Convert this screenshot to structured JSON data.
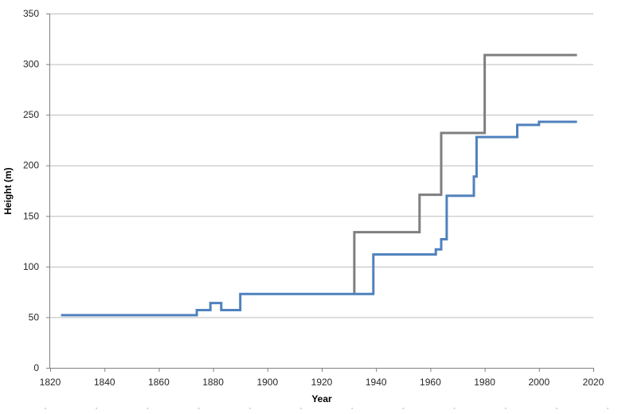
{
  "chart_data": {
    "type": "line",
    "line_style": "step-after",
    "title": "",
    "xlabel": "Year",
    "ylabel": "Height (m)",
    "xlim": [
      1820,
      2020
    ],
    "ylim": [
      0,
      350
    ],
    "x_ticks": [
      1820,
      1840,
      1860,
      1880,
      1900,
      1920,
      1940,
      1960,
      1980,
      2000,
      2020
    ],
    "y_ticks": [
      0,
      50,
      100,
      150,
      200,
      250,
      300,
      350
    ],
    "grid": "horizontal-only",
    "legend": "none",
    "series": [
      {
        "id": "gray",
        "color": "#7F7F7F",
        "points": [
          [
            1932,
            73
          ],
          [
            1932,
            134
          ],
          [
            1956,
            171
          ],
          [
            1964,
            232
          ],
          [
            1980,
            309
          ],
          [
            2014,
            309
          ]
        ]
      },
      {
        "id": "blue",
        "color": "#4F81BD",
        "points": [
          [
            1824,
            52
          ],
          [
            1874,
            57
          ],
          [
            1879,
            64
          ],
          [
            1883,
            57
          ],
          [
            1890,
            73
          ],
          [
            1939,
            112
          ],
          [
            1962,
            117
          ],
          [
            1964,
            127
          ],
          [
            1966,
            170
          ],
          [
            1976,
            189
          ],
          [
            1977,
            228
          ],
          [
            1992,
            240
          ],
          [
            2000,
            243
          ],
          [
            2014,
            243
          ]
        ]
      }
    ],
    "colors": {
      "background": "#FFFFFF",
      "gridline": "#BDBDBD",
      "axis": "#808080",
      "tick_text": "#262626"
    }
  }
}
